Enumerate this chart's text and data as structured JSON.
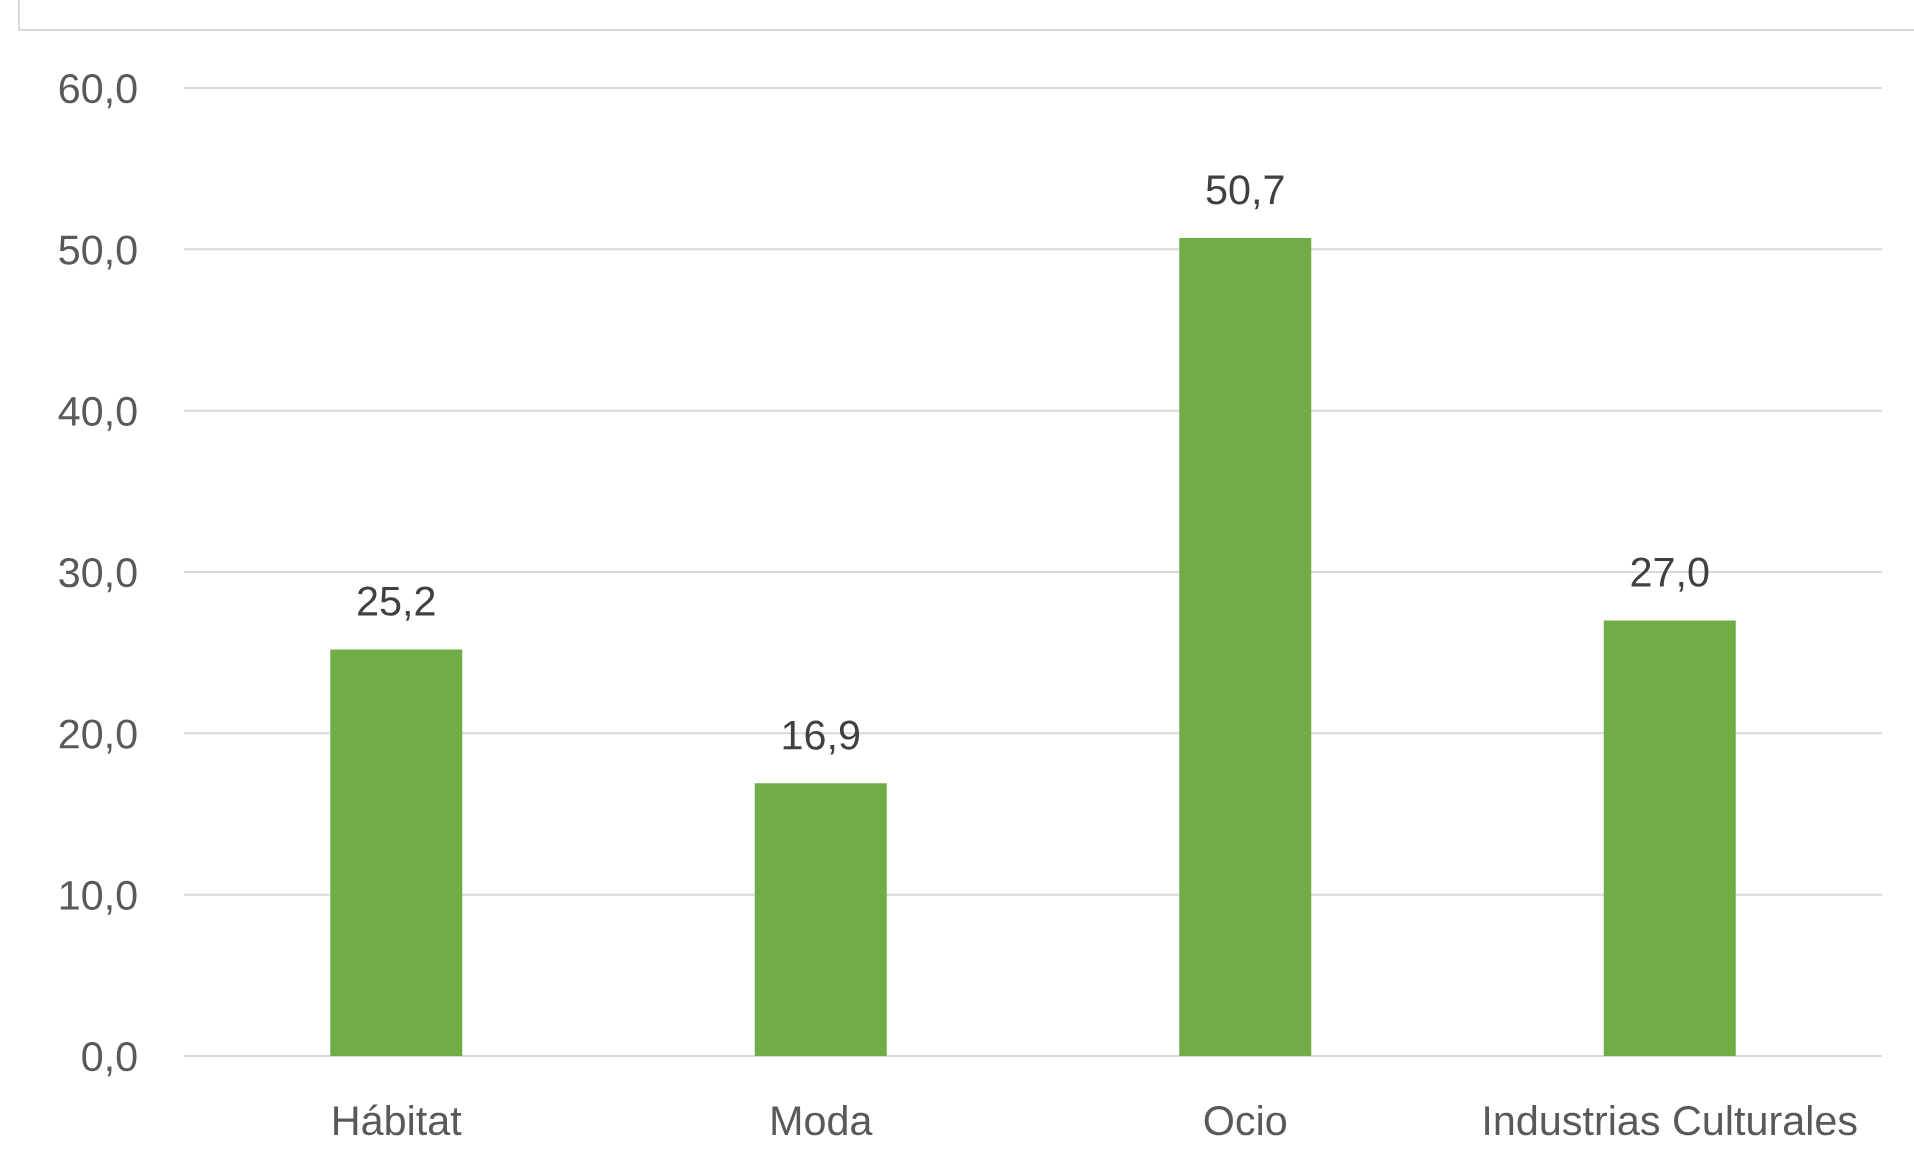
{
  "chart_data": {
    "type": "bar",
    "categories": [
      "Hábitat",
      "Moda",
      "Ocio",
      "Industrias Culturales"
    ],
    "values": [
      25.2,
      16.9,
      50.7,
      27.0
    ],
    "color": "#70ad47",
    "value_labels": [
      "25,2",
      "16,9",
      "50,7",
      "27,0"
    ],
    "ylim": [
      0,
      60
    ],
    "yticks": [
      {
        "value": 0,
        "label": "0,0"
      },
      {
        "value": 10,
        "label": "10,0"
      },
      {
        "value": 20,
        "label": "20,0"
      },
      {
        "value": 30,
        "label": "30,0"
      },
      {
        "value": 40,
        "label": "40,0"
      },
      {
        "value": 50,
        "label": "50,0"
      },
      {
        "value": 60,
        "label": "60,0"
      }
    ],
    "grid": "y"
  }
}
